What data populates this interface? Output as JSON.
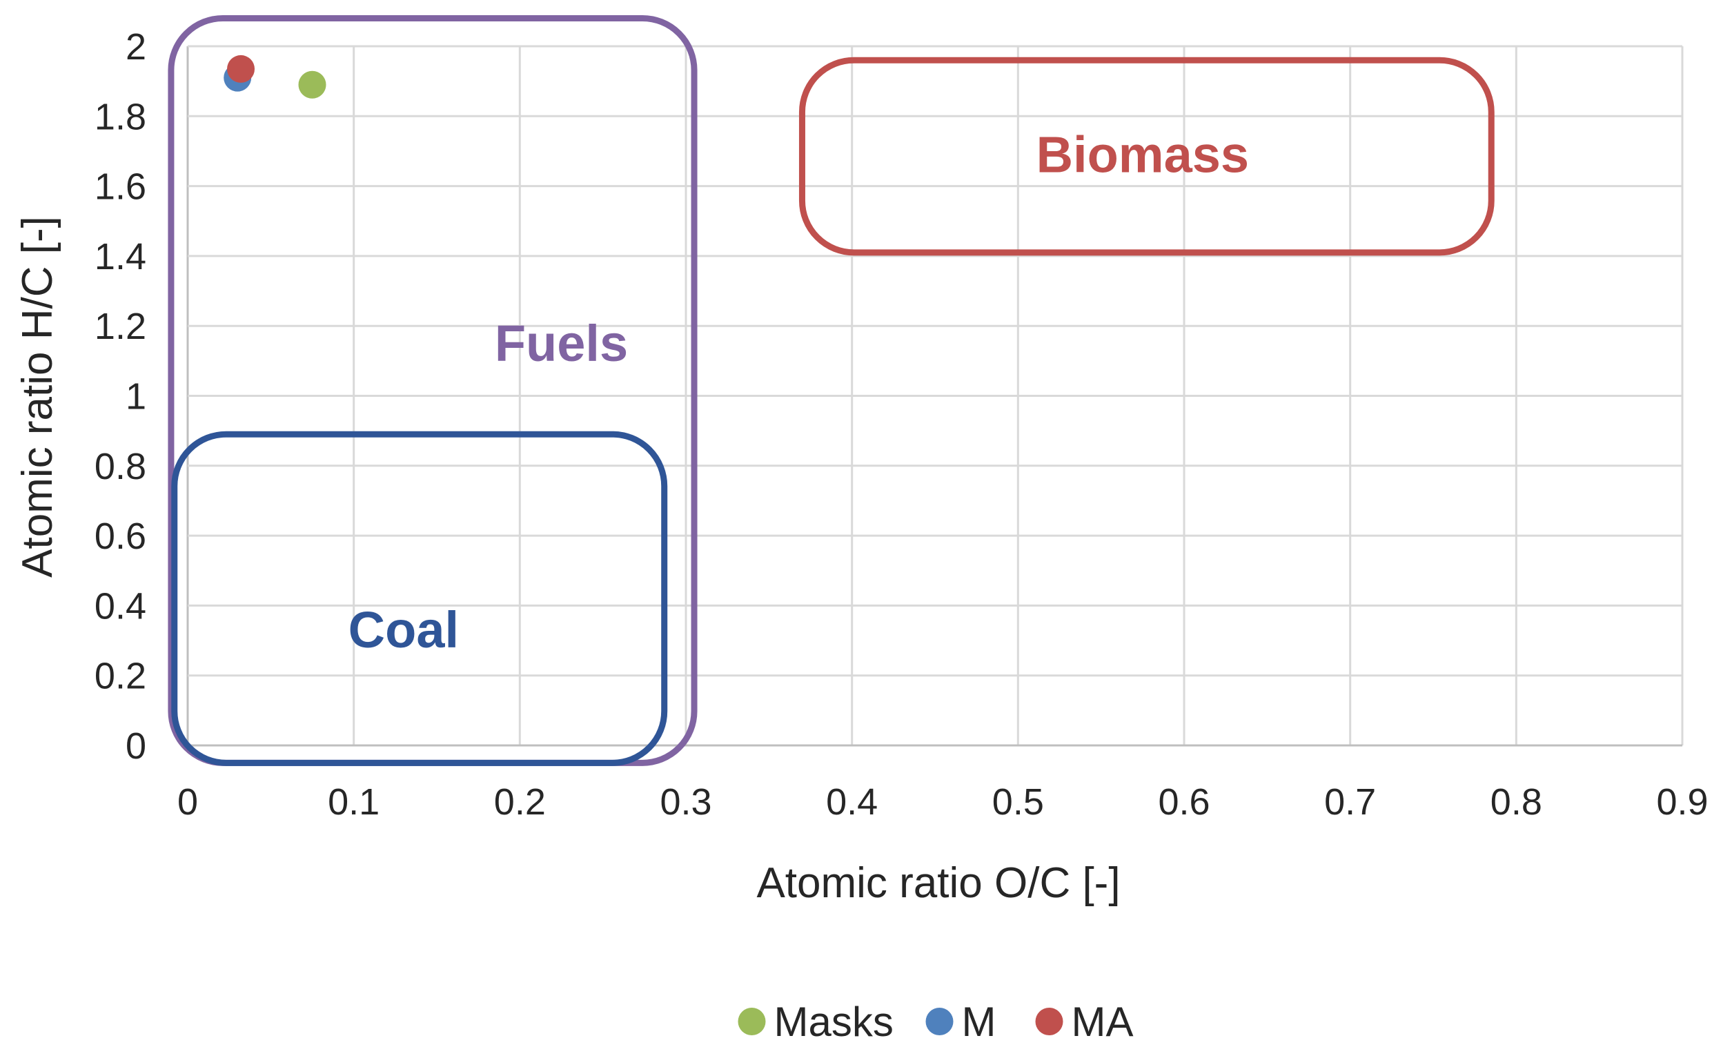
{
  "chart_data": {
    "type": "scatter",
    "title": "",
    "xlabel": "Atomic ratio O/C [-]",
    "ylabel": "Atomic ratio H/C [-]",
    "xlim": [
      0,
      0.9
    ],
    "ylim": [
      0,
      2
    ],
    "x_ticks": [
      "0",
      "0.1",
      "0.2",
      "0.3",
      "0.4",
      "0.5",
      "0.6",
      "0.7",
      "0.8",
      "0.9"
    ],
    "y_ticks": [
      "0",
      "0.2",
      "0.4",
      "0.6",
      "0.8",
      "1",
      "1.2",
      "1.4",
      "1.6",
      "1.8",
      "2"
    ],
    "grid": true,
    "legend_position": "bottom-center",
    "series": [
      {
        "name": "Masks",
        "color": "#9bbb59",
        "points": [
          {
            "x": 0.075,
            "y": 1.89
          }
        ]
      },
      {
        "name": "M",
        "color": "#4f81bd",
        "points": [
          {
            "x": 0.03,
            "y": 1.91
          }
        ]
      },
      {
        "name": "MA",
        "color": "#c0504d",
        "points": [
          {
            "x": 0.032,
            "y": 1.935
          }
        ]
      }
    ],
    "regions": [
      {
        "name": "Fuels",
        "color": "#8064a2",
        "x_range": [
          -0.01,
          0.305
        ],
        "y_range": [
          -0.05,
          2.08
        ],
        "label_at": {
          "x": 0.225,
          "y": 1.1
        }
      },
      {
        "name": "Coal",
        "color": "#2f5597",
        "x_range": [
          -0.008,
          0.287
        ],
        "y_range": [
          -0.05,
          0.89
        ],
        "label_at": {
          "x": 0.13,
          "y": 0.28
        }
      },
      {
        "name": "Biomass",
        "color": "#c0504d",
        "x_range": [
          0.37,
          0.785
        ],
        "y_range": [
          1.41,
          1.96
        ],
        "label_at": {
          "x": 0.575,
          "y": 1.64
        }
      }
    ]
  }
}
